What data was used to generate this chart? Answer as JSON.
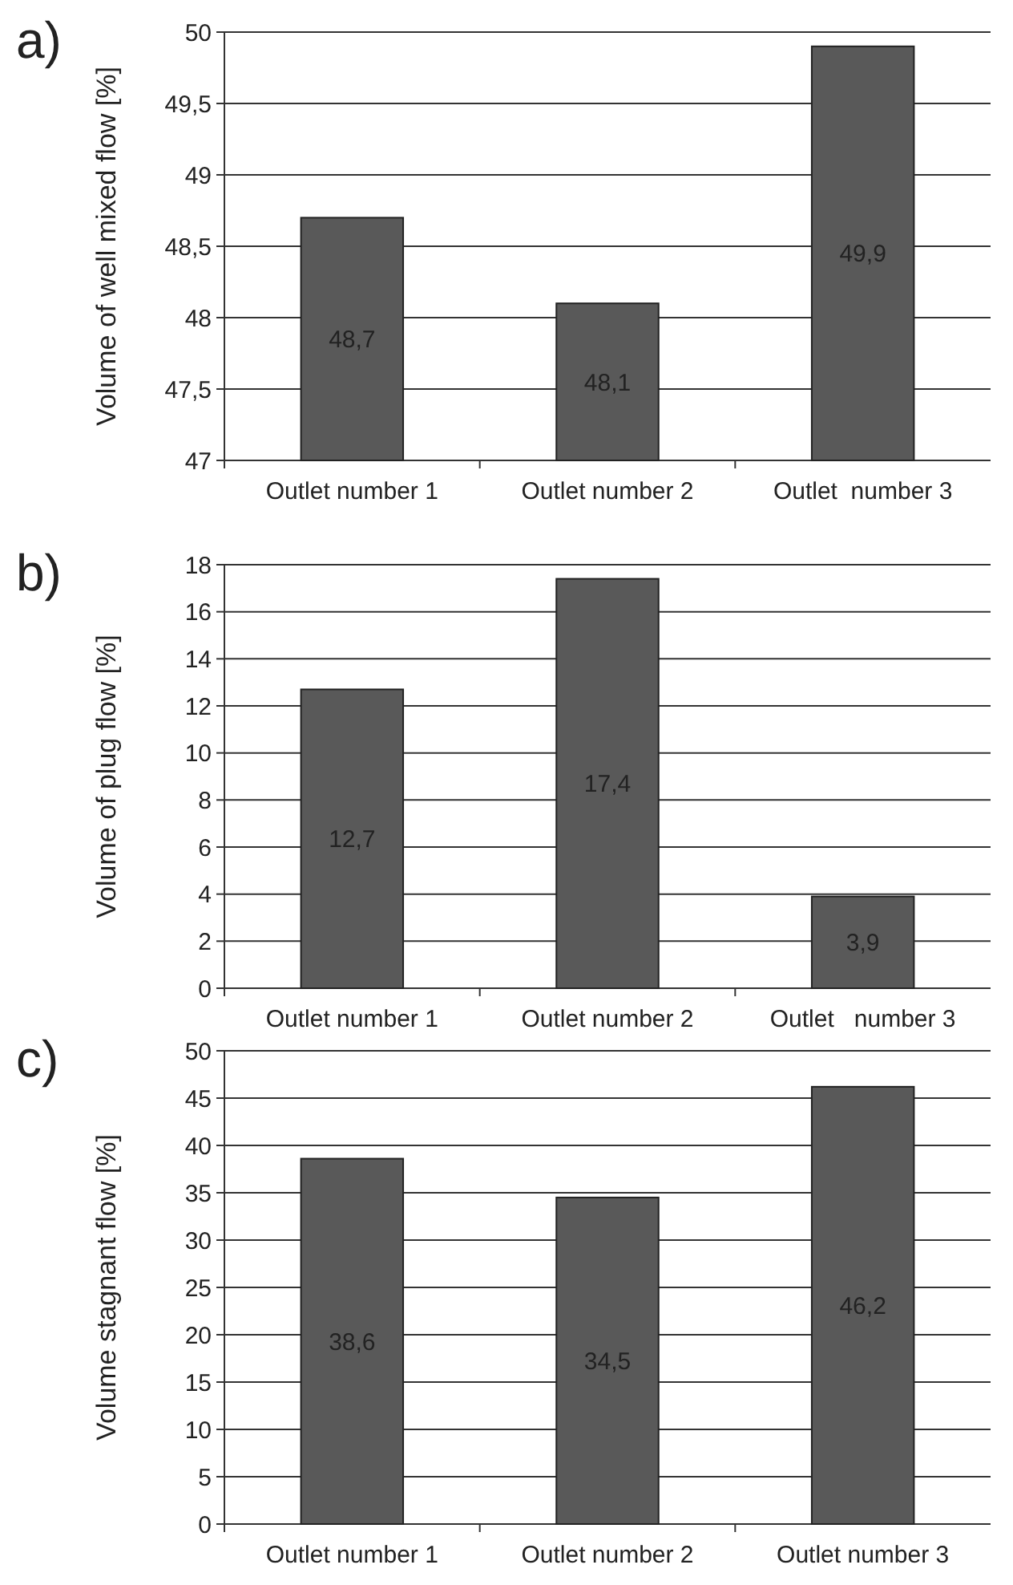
{
  "chart_data": [
    {
      "type": "bar",
      "title": "a)",
      "ylabel": "Volume of well mixed flow [%]",
      "categories": [
        "Outlet number 1",
        "Outlet number 2",
        "Outlet  number 3"
      ],
      "values": [
        48.7,
        48.1,
        49.9
      ],
      "value_labels": [
        "48,7",
        "48,1",
        "49,9"
      ],
      "color": "#595959",
      "ylim": [
        47,
        50
      ],
      "yticks": [
        47,
        {
          "value": 47.5,
          "label": "47,5"
        },
        48,
        {
          "value": 48.5,
          "label": "48,5"
        },
        49,
        {
          "value": 49.5,
          "label": "49,5"
        },
        50
      ],
      "grid": "y"
    },
    {
      "type": "bar",
      "title": "b)",
      "ylabel": "Volume of plug flow [%]",
      "categories": [
        "Outlet number 1",
        "Outlet number 2",
        "Outlet   number 3"
      ],
      "values": [
        12.7,
        17.4,
        3.9
      ],
      "value_labels": [
        "12,7",
        "17,4",
        "3,9"
      ],
      "color": "#595959",
      "ylim": [
        0,
        18
      ],
      "yticks": [
        0,
        2,
        4,
        6,
        8,
        10,
        12,
        14,
        16,
        18
      ],
      "grid": "y"
    },
    {
      "type": "bar",
      "title": "c)",
      "ylabel": "Volume stagnant flow [%]",
      "categories": [
        "Outlet number 1",
        "Outlet number 2",
        "Outlet number 3"
      ],
      "values": [
        38.6,
        34.5,
        46.2
      ],
      "value_labels": [
        "38,6",
        "34,5",
        "46,2"
      ],
      "color": "#595959",
      "ylim": [
        0,
        50
      ],
      "yticks": [
        0,
        5,
        10,
        15,
        20,
        25,
        30,
        35,
        40,
        45,
        50
      ],
      "grid": "y"
    }
  ]
}
